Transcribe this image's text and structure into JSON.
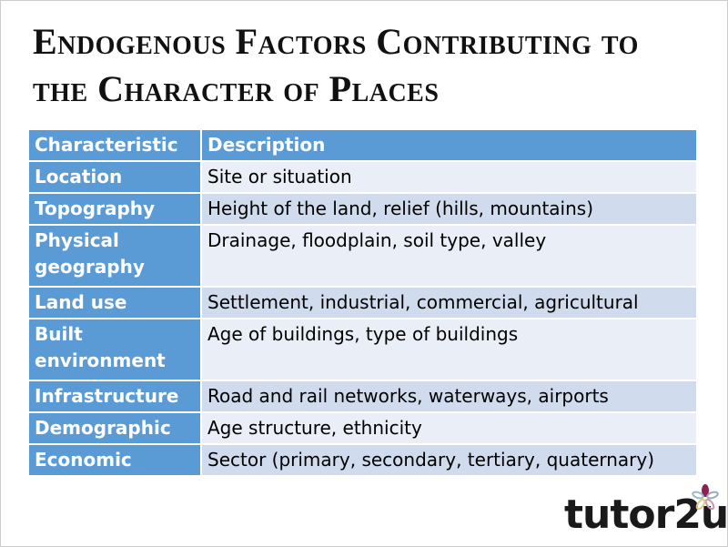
{
  "title_line1": "Endogenous Factors Contributing to",
  "title_line2": "the Character of Places",
  "table": {
    "headers": [
      "Characteristic",
      "Description"
    ],
    "rows": [
      [
        "Location",
        "Site or situation"
      ],
      [
        "Topography",
        "Height of the land, relief (hills, mountains)"
      ],
      [
        "Physical geography",
        "Drainage, floodplain, soil type, valley"
      ],
      [
        "Land use",
        "Settlement, industrial, commercial, agricultural"
      ],
      [
        "Built environment",
        "Age of buildings, type of buildings"
      ],
      [
        "Infrastructure",
        "Road and rail networks, waterways, airports"
      ],
      [
        "Demographic",
        "Age structure, ethnicity"
      ],
      [
        "Economic",
        "Sector (primary, secondary, tertiary, quaternary)"
      ]
    ]
  },
  "logo": "tutor2u",
  "colors": {
    "header": "#5b9bd5",
    "row_dark": "#d0dcee",
    "row_light": "#e9eef7"
  }
}
